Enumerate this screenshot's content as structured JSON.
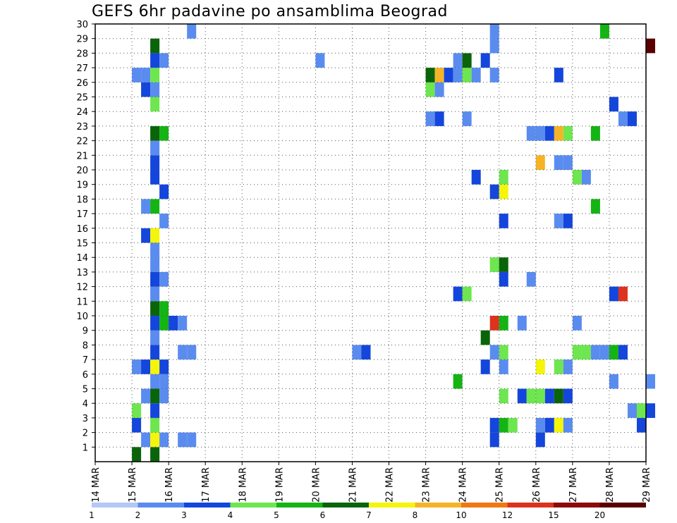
{
  "chart_data": {
    "type": "heatmap",
    "title": "GEFS 6hr padavine po ansamblima Beograd",
    "xlabel": "",
    "ylabel": "",
    "x_tick_labels": [
      "14 MAR",
      "15 MAR",
      "16 MAR",
      "17 MAR",
      "18 MAR",
      "19 MAR",
      "20 MAR",
      "21 MAR",
      "22 MAR",
      "23 MAR",
      "24 MAR",
      "25 MAR",
      "26 MAR",
      "27 MAR",
      "28 MAR",
      "29 MAR"
    ],
    "x_range_days": [
      14,
      29
    ],
    "y_tick_labels": [
      1,
      2,
      3,
      4,
      5,
      6,
      7,
      8,
      9,
      10,
      11,
      12,
      13,
      14,
      15,
      16,
      17,
      18,
      19,
      20,
      21,
      22,
      23,
      24,
      25,
      26,
      27,
      28,
      29,
      30
    ],
    "y_range": [
      0,
      30
    ],
    "grid": true,
    "colorbar": {
      "labels": [
        "1",
        "2",
        "3",
        "4",
        "5",
        "6",
        "7",
        "8",
        "10",
        "12",
        "15",
        "20"
      ],
      "colors": [
        "#b4c8f5",
        "#5a8cf0",
        "#1446dc",
        "#6ee650",
        "#14b414",
        "#0a640a",
        "#f5f50a",
        "#f5b428",
        "#f07814",
        "#dc321e",
        "#8c0a0a",
        "#5a0000"
      ]
    },
    "cell_duration_days": 0.25,
    "cells": [
      [
        15.0,
        0,
        5
      ],
      [
        15.5,
        0,
        5
      ],
      [
        15.25,
        1,
        1
      ],
      [
        15.5,
        1,
        6
      ],
      [
        15.75,
        1,
        1
      ],
      [
        16.25,
        1,
        1
      ],
      [
        16.5,
        1,
        1
      ],
      [
        24.75,
        1,
        2
      ],
      [
        26.0,
        1,
        2
      ],
      [
        15.0,
        2,
        2
      ],
      [
        15.5,
        2,
        3
      ],
      [
        24.75,
        2,
        2
      ],
      [
        25.0,
        2,
        4
      ],
      [
        25.25,
        2,
        3
      ],
      [
        26.0,
        2,
        1
      ],
      [
        26.25,
        2,
        2
      ],
      [
        26.5,
        2,
        6
      ],
      [
        26.75,
        2,
        1
      ],
      [
        28.75,
        2,
        2
      ],
      [
        15.0,
        3,
        3
      ],
      [
        15.5,
        3,
        2
      ],
      [
        28.5,
        3,
        1
      ],
      [
        28.75,
        3,
        3
      ],
      [
        29.0,
        3,
        2
      ],
      [
        15.25,
        4,
        1
      ],
      [
        15.5,
        4,
        5
      ],
      [
        15.75,
        4,
        1
      ],
      [
        25.0,
        4,
        3
      ],
      [
        25.5,
        4,
        2
      ],
      [
        25.75,
        4,
        3
      ],
      [
        26.0,
        4,
        3
      ],
      [
        26.25,
        4,
        2
      ],
      [
        26.5,
        4,
        5
      ],
      [
        26.75,
        4,
        2
      ],
      [
        15.5,
        5,
        1
      ],
      [
        15.75,
        5,
        1
      ],
      [
        23.75,
        5,
        4
      ],
      [
        28.0,
        5,
        1
      ],
      [
        29.0,
        5,
        1
      ],
      [
        15.0,
        6,
        1
      ],
      [
        15.25,
        6,
        2
      ],
      [
        15.5,
        6,
        6
      ],
      [
        15.75,
        6,
        2
      ],
      [
        24.5,
        6,
        2
      ],
      [
        25.0,
        6,
        1
      ],
      [
        26.0,
        6,
        6
      ],
      [
        26.5,
        6,
        3
      ],
      [
        26.75,
        6,
        1
      ],
      [
        15.5,
        7,
        2
      ],
      [
        16.25,
        7,
        1
      ],
      [
        16.5,
        7,
        1
      ],
      [
        21.0,
        7,
        1
      ],
      [
        21.25,
        7,
        2
      ],
      [
        24.75,
        7,
        1
      ],
      [
        25.0,
        7,
        3
      ],
      [
        27.0,
        7,
        3
      ],
      [
        27.25,
        7,
        3
      ],
      [
        27.5,
        7,
        1
      ],
      [
        27.75,
        7,
        1
      ],
      [
        28.0,
        7,
        4
      ],
      [
        28.25,
        7,
        2
      ],
      [
        15.5,
        8,
        1
      ],
      [
        24.5,
        8,
        5
      ],
      [
        15.5,
        9,
        2
      ],
      [
        15.75,
        9,
        4
      ],
      [
        16.0,
        9,
        2
      ],
      [
        16.25,
        9,
        1
      ],
      [
        24.75,
        9,
        9
      ],
      [
        25.0,
        9,
        4
      ],
      [
        25.5,
        9,
        1
      ],
      [
        27.0,
        9,
        1
      ],
      [
        15.5,
        10,
        5
      ],
      [
        15.75,
        10,
        4
      ],
      [
        15.5,
        11,
        1
      ],
      [
        23.75,
        11,
        2
      ],
      [
        24.0,
        11,
        3
      ],
      [
        28.0,
        11,
        2
      ],
      [
        28.25,
        11,
        9
      ],
      [
        15.5,
        12,
        2
      ],
      [
        15.75,
        12,
        1
      ],
      [
        25.0,
        12,
        2
      ],
      [
        25.75,
        12,
        1
      ],
      [
        15.5,
        13,
        1
      ],
      [
        24.75,
        13,
        3
      ],
      [
        25.0,
        13,
        5
      ],
      [
        15.5,
        14,
        1
      ],
      [
        15.25,
        15,
        2
      ],
      [
        15.5,
        15,
        6
      ],
      [
        15.75,
        16,
        1
      ],
      [
        25.0,
        16,
        2
      ],
      [
        26.5,
        16,
        1
      ],
      [
        26.75,
        16,
        2
      ],
      [
        15.25,
        17,
        1
      ],
      [
        15.5,
        17,
        4
      ],
      [
        27.5,
        17,
        4
      ],
      [
        15.75,
        18,
        2
      ],
      [
        24.75,
        18,
        2
      ],
      [
        25.0,
        18,
        6
      ],
      [
        15.5,
        19,
        2
      ],
      [
        24.25,
        19,
        2
      ],
      [
        25.0,
        19,
        3
      ],
      [
        27.0,
        19,
        3
      ],
      [
        27.25,
        19,
        1
      ],
      [
        15.5,
        20,
        2
      ],
      [
        26.0,
        20,
        7
      ],
      [
        26.5,
        20,
        1
      ],
      [
        26.75,
        20,
        1
      ],
      [
        15.5,
        21,
        1
      ],
      [
        15.5,
        22,
        5
      ],
      [
        15.75,
        22,
        4
      ],
      [
        25.75,
        22,
        1
      ],
      [
        26.0,
        22,
        1
      ],
      [
        26.25,
        22,
        2
      ],
      [
        26.5,
        22,
        7
      ],
      [
        26.75,
        22,
        3
      ],
      [
        27.5,
        22,
        4
      ],
      [
        23.0,
        23,
        1
      ],
      [
        23.25,
        23,
        2
      ],
      [
        24.0,
        23,
        1
      ],
      [
        28.25,
        23,
        1
      ],
      [
        28.5,
        23,
        2
      ],
      [
        15.5,
        24,
        3
      ],
      [
        28.0,
        24,
        2
      ],
      [
        15.25,
        25,
        2
      ],
      [
        15.5,
        25,
        1
      ],
      [
        23.0,
        25,
        3
      ],
      [
        23.25,
        25,
        1
      ],
      [
        15.0,
        26,
        1
      ],
      [
        15.25,
        26,
        1
      ],
      [
        15.5,
        26,
        3
      ],
      [
        23.0,
        26,
        5
      ],
      [
        23.25,
        26,
        7
      ],
      [
        23.5,
        26,
        2
      ],
      [
        23.75,
        26,
        1
      ],
      [
        24.0,
        26,
        3
      ],
      [
        24.25,
        26,
        1
      ],
      [
        24.75,
        26,
        1
      ],
      [
        26.5,
        26,
        2
      ],
      [
        15.5,
        27,
        2
      ],
      [
        15.75,
        27,
        1
      ],
      [
        20.0,
        27,
        1
      ],
      [
        23.75,
        27,
        1
      ],
      [
        24.0,
        27,
        5
      ],
      [
        24.5,
        27,
        2
      ],
      [
        15.5,
        28,
        5
      ],
      [
        24.75,
        28,
        1
      ],
      [
        29.0,
        28,
        11
      ],
      [
        16.5,
        29,
        1
      ],
      [
        24.75,
        29,
        1
      ],
      [
        27.75,
        29,
        4
      ]
    ]
  }
}
